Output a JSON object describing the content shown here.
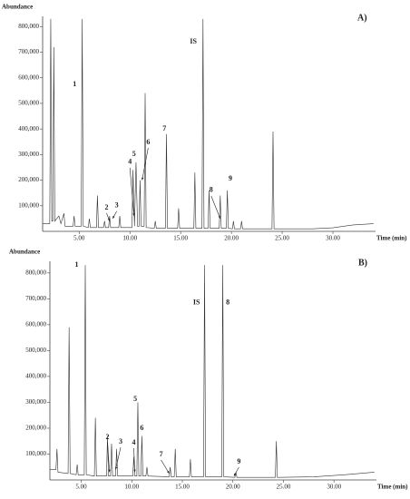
{
  "chart_data": [
    {
      "type": "line",
      "title": "A)",
      "y_label": "Abundance",
      "x_label": "Time (min)",
      "xlim": [
        1.4,
        34.2
      ],
      "ylim": [
        0,
        840000
      ],
      "xticks": [
        {
          "value": 5,
          "label": "5.00"
        },
        {
          "value": 10,
          "label": "10.00"
        },
        {
          "value": 15,
          "label": "15.00"
        },
        {
          "value": 20,
          "label": "20.00"
        },
        {
          "value": 25,
          "label": "25.00"
        },
        {
          "value": 30,
          "label": "30.00"
        }
      ],
      "yticks": [
        {
          "value": 100000,
          "label": "100,000"
        },
        {
          "value": 200000,
          "label": "200,000"
        },
        {
          "value": 300000,
          "label": "300,000"
        },
        {
          "value": 400000,
          "label": "400,000"
        },
        {
          "value": 500000,
          "label": "500,000"
        },
        {
          "value": 600000,
          "label": "600,000"
        },
        {
          "value": 700000,
          "label": "700,000"
        },
        {
          "value": 800000,
          "label": "800,000"
        }
      ],
      "x": [
        1.4,
        2.1,
        2.2,
        2.3,
        2.4,
        2.5,
        2.6,
        3.0,
        3.2,
        3.5,
        3.6,
        4.4,
        4.5,
        4.6,
        5.2,
        5.3,
        5.4,
        5.9,
        6.0,
        6.1,
        6.7,
        6.8,
        6.9,
        7.4,
        7.5,
        7.6,
        7.9,
        8.0,
        8.1,
        8.9,
        9.0,
        9.1,
        10.2,
        10.3,
        10.45,
        10.6,
        10.75,
        10.9,
        11.0,
        11.1,
        11.4,
        11.5,
        11.6,
        12.4,
        12.5,
        12.6,
        13.5,
        13.6,
        13.7,
        14.7,
        14.8,
        14.9,
        16.3,
        16.4,
        16.5,
        17.1,
        17.2,
        17.3,
        17.7,
        17.8,
        17.9,
        18.8,
        18.9,
        19.0,
        19.5,
        19.6,
        19.7,
        20.1,
        20.2,
        20.3,
        20.9,
        21.0,
        21.1,
        24.0,
        24.1,
        24.2,
        28.0,
        30.0,
        32.0,
        34.0
      ],
      "series": [
        {
          "color": "#333333",
          "values": [
            30000,
            30000,
            830000,
            40000,
            40000,
            720000,
            40000,
            60000,
            30000,
            70000,
            20000,
            20000,
            60000,
            20000,
            20000,
            830000,
            20000,
            15000,
            50000,
            15000,
            15000,
            140000,
            15000,
            15000,
            40000,
            15000,
            15000,
            60000,
            15000,
            15000,
            60000,
            15000,
            15000,
            240000,
            20000,
            270000,
            20000,
            20000,
            200000,
            20000,
            20000,
            540000,
            15000,
            12000,
            40000,
            12000,
            12000,
            380000,
            12000,
            12000,
            90000,
            12000,
            12000,
            230000,
            12000,
            12000,
            830000,
            12000,
            12000,
            160000,
            12000,
            12000,
            140000,
            12000,
            12000,
            160000,
            12000,
            10000,
            40000,
            10000,
            10000,
            40000,
            10000,
            10000,
            390000,
            10000,
            10000,
            14000,
            25000,
            30000
          ]
        }
      ],
      "annotations": [
        {
          "text": "1",
          "x": 4.55,
          "y": 574000
        },
        {
          "text": "IS",
          "x": 16.25,
          "y": 740000
        },
        {
          "text": "7",
          "x": 13.4,
          "y": 400000
        },
        {
          "text": "6",
          "x": 11.8,
          "y": 347000,
          "arrow_x": 11.2,
          "arrow_y": 200000
        },
        {
          "text": "5",
          "x": 10.4,
          "y": 300000
        },
        {
          "text": "4",
          "x": 10.0,
          "y": 270000,
          "arrow_x": 10.4,
          "arrow_y": 60000
        },
        {
          "text": "2",
          "x": 7.7,
          "y": 92000,
          "arrow_x": 8.0,
          "arrow_y": 40000
        },
        {
          "text": "3",
          "x": 8.7,
          "y": 100000,
          "arrow_x": 8.3,
          "arrow_y": 50000
        },
        {
          "text": "8",
          "x": 18.0,
          "y": 160000,
          "arrow_x": 18.9,
          "arrow_y": 50000
        },
        {
          "text": "9",
          "x": 19.9,
          "y": 205000
        }
      ]
    },
    {
      "type": "line",
      "title": "B)",
      "y_label": "Abundance",
      "x_label": "Time (min)",
      "xlim": [
        1.9,
        34.2
      ],
      "ylim": [
        0,
        845000
      ],
      "xticks": [
        {
          "value": 5,
          "label": "5.00"
        },
        {
          "value": 10,
          "label": "10.00"
        },
        {
          "value": 15,
          "label": "15.00"
        },
        {
          "value": 20,
          "label": "20.00"
        },
        {
          "value": 25,
          "label": "25.00"
        },
        {
          "value": 30,
          "label": "30.00"
        }
      ],
      "yticks": [
        {
          "value": 100000,
          "label": "100,000"
        },
        {
          "value": 200000,
          "label": "200,000"
        },
        {
          "value": 300000,
          "label": "300,000"
        },
        {
          "value": 400000,
          "label": "400,000"
        },
        {
          "value": 500000,
          "label": "500,000"
        },
        {
          "value": 600000,
          "label": "600,000"
        },
        {
          "value": 700000,
          "label": "700,000"
        },
        {
          "value": 800000,
          "label": "800,000"
        }
      ],
      "x": [
        1.9,
        2.5,
        2.6,
        2.7,
        3.7,
        3.8,
        3.9,
        4.5,
        4.6,
        4.7,
        5.3,
        5.4,
        5.5,
        6.3,
        6.4,
        6.5,
        7.5,
        7.6,
        7.7,
        7.9,
        8.0,
        8.1,
        8.4,
        8.5,
        8.6,
        10.1,
        10.2,
        10.3,
        10.5,
        10.6,
        10.7,
        10.9,
        11.0,
        11.1,
        11.4,
        11.5,
        11.6,
        13.7,
        13.8,
        13.9,
        14.2,
        14.3,
        14.4,
        15.7,
        15.8,
        15.9,
        17.1,
        17.2,
        17.3,
        18.9,
        19.0,
        19.1,
        20.2,
        20.3,
        20.4,
        24.2,
        24.3,
        24.4,
        28.0,
        31.0,
        34.0
      ],
      "series": [
        {
          "color": "#333333",
          "values": [
            40000,
            40000,
            120000,
            30000,
            25000,
            590000,
            25000,
            20000,
            60000,
            20000,
            20000,
            830000,
            20000,
            15000,
            240000,
            15000,
            15000,
            170000,
            15000,
            15000,
            140000,
            15000,
            15000,
            120000,
            15000,
            15000,
            90000,
            15000,
            15000,
            300000,
            15000,
            15000,
            170000,
            15000,
            15000,
            50000,
            15000,
            12000,
            50000,
            12000,
            12000,
            120000,
            12000,
            12000,
            80000,
            12000,
            12000,
            830000,
            12000,
            12000,
            830000,
            12000,
            10000,
            30000,
            10000,
            10000,
            150000,
            10000,
            12000,
            20000,
            30000
          ]
        }
      ],
      "annotations": [
        {
          "text": "1",
          "x": 4.55,
          "y": 830000
        },
        {
          "text": "IS",
          "x": 16.4,
          "y": 685000
        },
        {
          "text": "8",
          "x": 19.5,
          "y": 685000
        },
        {
          "text": "5",
          "x": 10.35,
          "y": 312000
        },
        {
          "text": "6",
          "x": 11.0,
          "y": 200000
        },
        {
          "text": "4",
          "x": 10.2,
          "y": 144000,
          "arrow_x": 10.3,
          "arrow_y": 30000
        },
        {
          "text": "2",
          "x": 7.6,
          "y": 165000,
          "arrow_x": 7.8,
          "arrow_y": 30000
        },
        {
          "text": "3",
          "x": 8.9,
          "y": 147000,
          "arrow_x": 8.4,
          "arrow_y": 40000
        },
        {
          "text": "7",
          "x": 12.9,
          "y": 98000,
          "arrow_x": 13.7,
          "arrow_y": 25000
        },
        {
          "text": "9",
          "x": 20.6,
          "y": 70000,
          "arrow_x": 20.1,
          "arrow_y": 15000
        }
      ]
    }
  ]
}
